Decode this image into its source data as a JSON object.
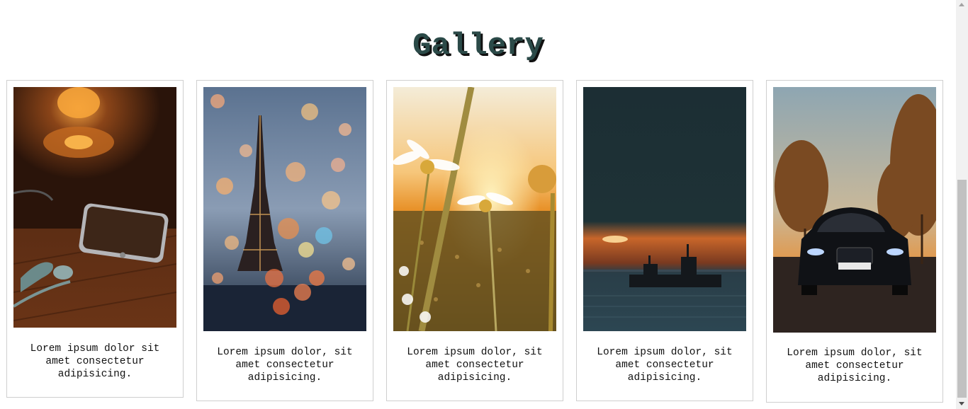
{
  "gallery": {
    "title": "Gallery",
    "cards": [
      {
        "image": "phone-earbuds-photo",
        "caption": "Lorem ipsum dolor sit amet consectetur adipisicing."
      },
      {
        "image": "eiffel-tower-bokeh-photo",
        "caption": "Lorem ipsum dolor, sit amet consectetur adipisicing."
      },
      {
        "image": "daisies-sunset-photo",
        "caption": "Lorem ipsum dolor, sit amet consectetur adipisicing."
      },
      {
        "image": "boat-sunset-sea-photo",
        "caption": "Lorem ipsum dolor, sit amet consectetur adipisicing."
      },
      {
        "image": "black-car-road-photo",
        "caption": "Lorem ipsum dolor, sit amet consectetur adipisicing."
      }
    ]
  },
  "colors": {
    "title": "#2b4a48",
    "title_shadow": "#111111",
    "card_border": "#cfcfcf"
  }
}
